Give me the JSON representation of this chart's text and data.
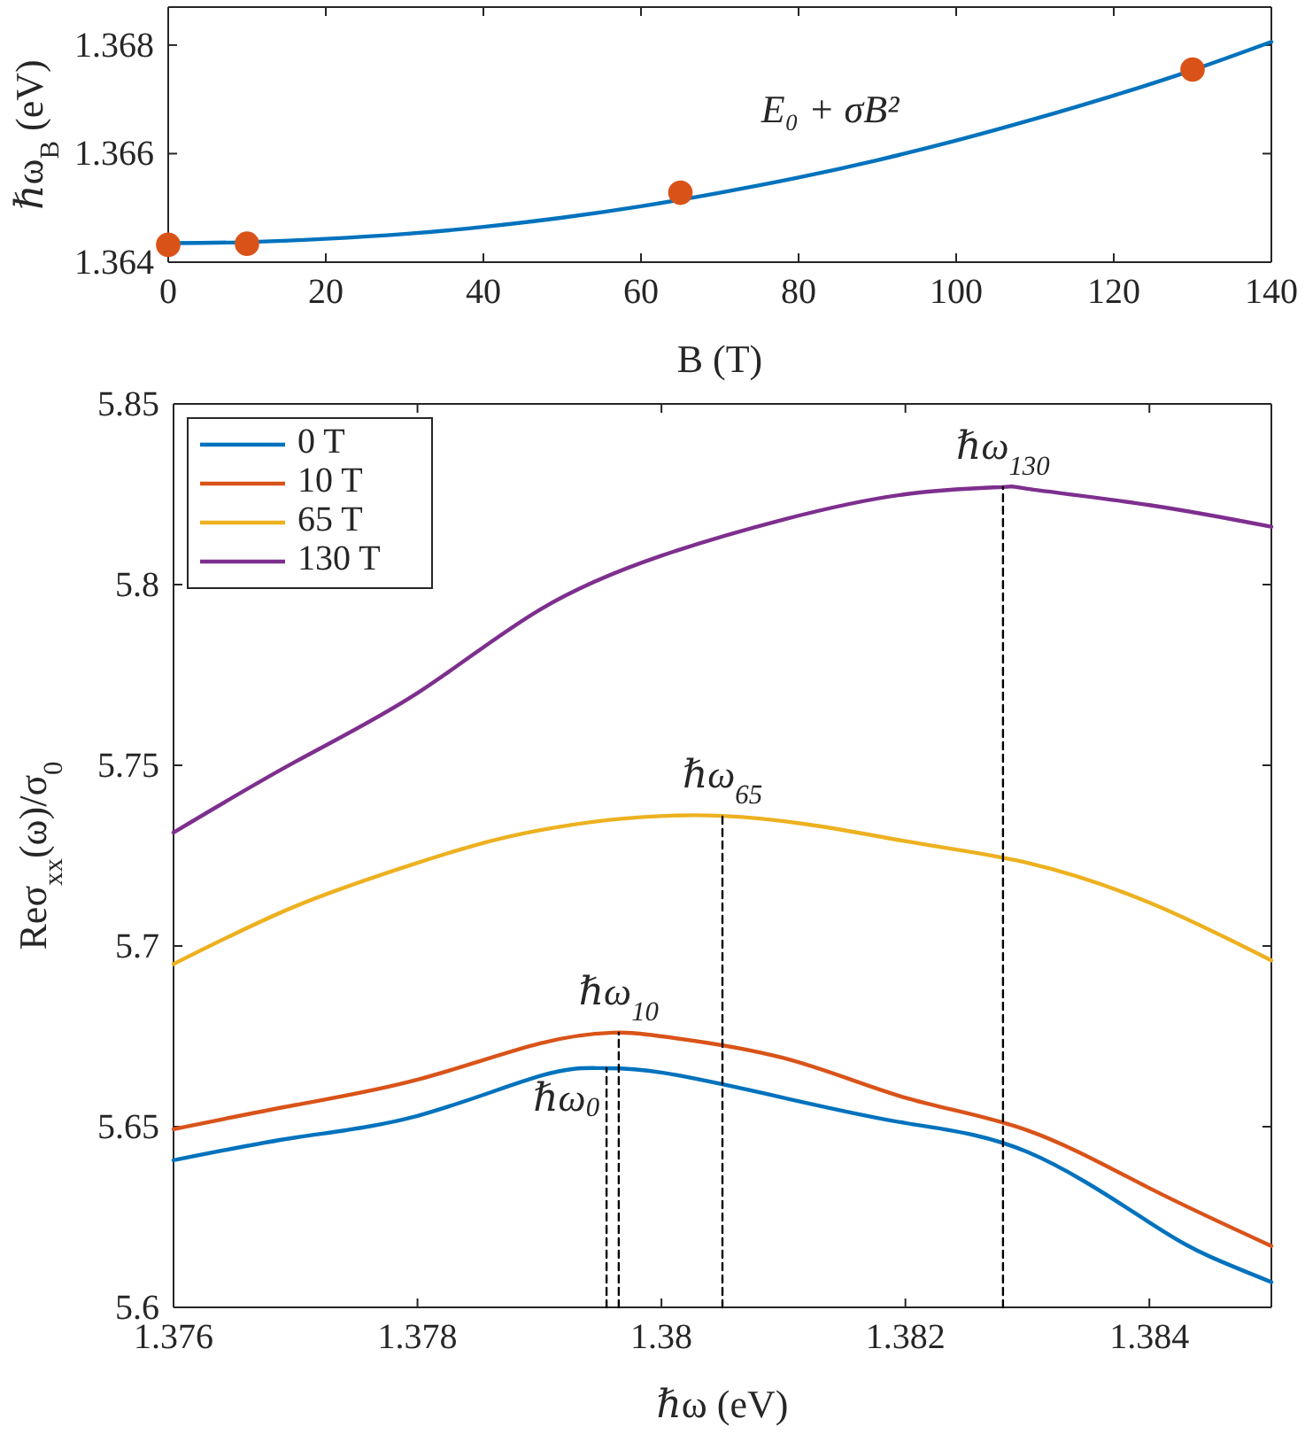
{
  "chart_data": [
    {
      "type": "scatter",
      "xlabel": "B (T)",
      "ylabel": "ℏω$_{B}$ (eV)",
      "xlim": [
        0,
        140
      ],
      "xticks": [
        0,
        20,
        40,
        60,
        80,
        100,
        120,
        140
      ],
      "ylim": [
        1.364,
        1.3687
      ],
      "yticks": [
        {
          "value": 1.364,
          "label": "1.364"
        },
        {
          "value": 1.366,
          "label": "1.366"
        },
        {
          "value": 1.368,
          "label": "1.368"
        }
      ],
      "grid": false,
      "legend": false,
      "annotations": [
        "E₀ + σB²"
      ],
      "series": [
        {
          "type": "line",
          "color": "#0072bd",
          "x": [
            0,
            10,
            20,
            30,
            40,
            50,
            60,
            70,
            80,
            90,
            100,
            110,
            120,
            130,
            140
          ],
          "values": [
            1.36435,
            1.36437,
            1.36443,
            1.36452,
            1.36465,
            1.36482,
            1.36503,
            1.36528,
            1.36556,
            1.36588,
            1.36624,
            1.36664,
            1.36707,
            1.36754,
            1.36806
          ]
        },
        {
          "color": "#d95319",
          "marker": "circle",
          "x": [
            0,
            10,
            65,
            130
          ],
          "values": [
            1.36432,
            1.36434,
            1.36528,
            1.36755
          ]
        }
      ]
    },
    {
      "type": "line",
      "xlabel": "ℏω (eV)",
      "ylabel": "Reσ$_{xx}$(ω)/σ$_{0}$",
      "xlim": [
        1.376,
        1.385
      ],
      "xticks": [
        1.376,
        1.378,
        {
          "value": 1.38,
          "label": "1.38"
        },
        1.382,
        1.384
      ],
      "ylim": [
        5.6,
        5.85
      ],
      "yticks": [
        {
          "value": 5.6,
          "label": "5.6"
        },
        5.65,
        {
          "value": 5.7,
          "label": "5.7"
        },
        5.75,
        {
          "value": 5.8,
          "label": "5.8"
        },
        5.85
      ],
      "grid": false,
      "legend": "top left",
      "annotations": [
        {
          "text": "ℏω$_{0}$",
          "x": 1.37955,
          "y": 5.6662
        },
        {
          "text": "ℏω$_{10}$",
          "x": 1.37965,
          "y": 5.676
        },
        {
          "text": "ℏω$_{65}$",
          "x": 1.3805,
          "y": 5.736
        },
        {
          "text": "ℏω$_{130}$",
          "x": 1.3828,
          "y": 5.827
        }
      ],
      "series": [
        {
          "name": "0 T",
          "color": "#0072bd",
          "x": [
            1.376,
            1.377,
            1.378,
            1.379,
            1.3795,
            1.38,
            1.381,
            1.382,
            1.383,
            1.384,
            1.3845,
            1.385
          ],
          "values": [
            5.6407,
            5.647,
            5.653,
            5.664,
            5.6662,
            5.665,
            5.658,
            5.651,
            5.643,
            5.6235,
            5.614,
            5.607
          ]
        },
        {
          "name": "10 T",
          "color": "#d95319",
          "x": [
            1.376,
            1.377,
            1.378,
            1.379,
            1.3796,
            1.38,
            1.381,
            1.382,
            1.383,
            1.384,
            1.385
          ],
          "values": [
            5.6493,
            5.656,
            5.663,
            5.673,
            5.676,
            5.675,
            5.669,
            5.658,
            5.649,
            5.633,
            5.617
          ]
        },
        {
          "name": "65 T",
          "color": "#edb120",
          "x": [
            1.376,
            1.377,
            1.378,
            1.379,
            1.3805,
            1.382,
            1.383,
            1.384,
            1.385
          ],
          "values": [
            5.695,
            5.711,
            5.723,
            5.732,
            5.736,
            5.729,
            5.723,
            5.712,
            5.696
          ]
        },
        {
          "name": "130 T",
          "color": "#7e2f8e",
          "x": [
            1.376,
            1.377,
            1.378,
            1.379,
            1.38,
            1.381,
            1.382,
            1.3828,
            1.383,
            1.384,
            1.385
          ],
          "values": [
            5.7314,
            5.751,
            5.77,
            5.793,
            5.808,
            5.818,
            5.825,
            5.827,
            5.8265,
            5.822,
            5.816
          ]
        },
        {
          "color": "#000000",
          "line_style": "dashed",
          "x": [
            1.37955,
            1.37955
          ],
          "values": [
            5.6,
            5.6662
          ]
        },
        {
          "color": "#000000",
          "line_style": "dashed",
          "x": [
            1.37965,
            1.37965
          ],
          "values": [
            5.6,
            5.676
          ]
        },
        {
          "color": "#000000",
          "line_style": "dashed",
          "x": [
            1.3805,
            1.3805
          ],
          "values": [
            5.6,
            5.736
          ]
        },
        {
          "color": "#000000",
          "line_style": "dashed",
          "x": [
            1.3828,
            1.3828
          ],
          "values": [
            5.6,
            5.827
          ]
        }
      ]
    }
  ]
}
